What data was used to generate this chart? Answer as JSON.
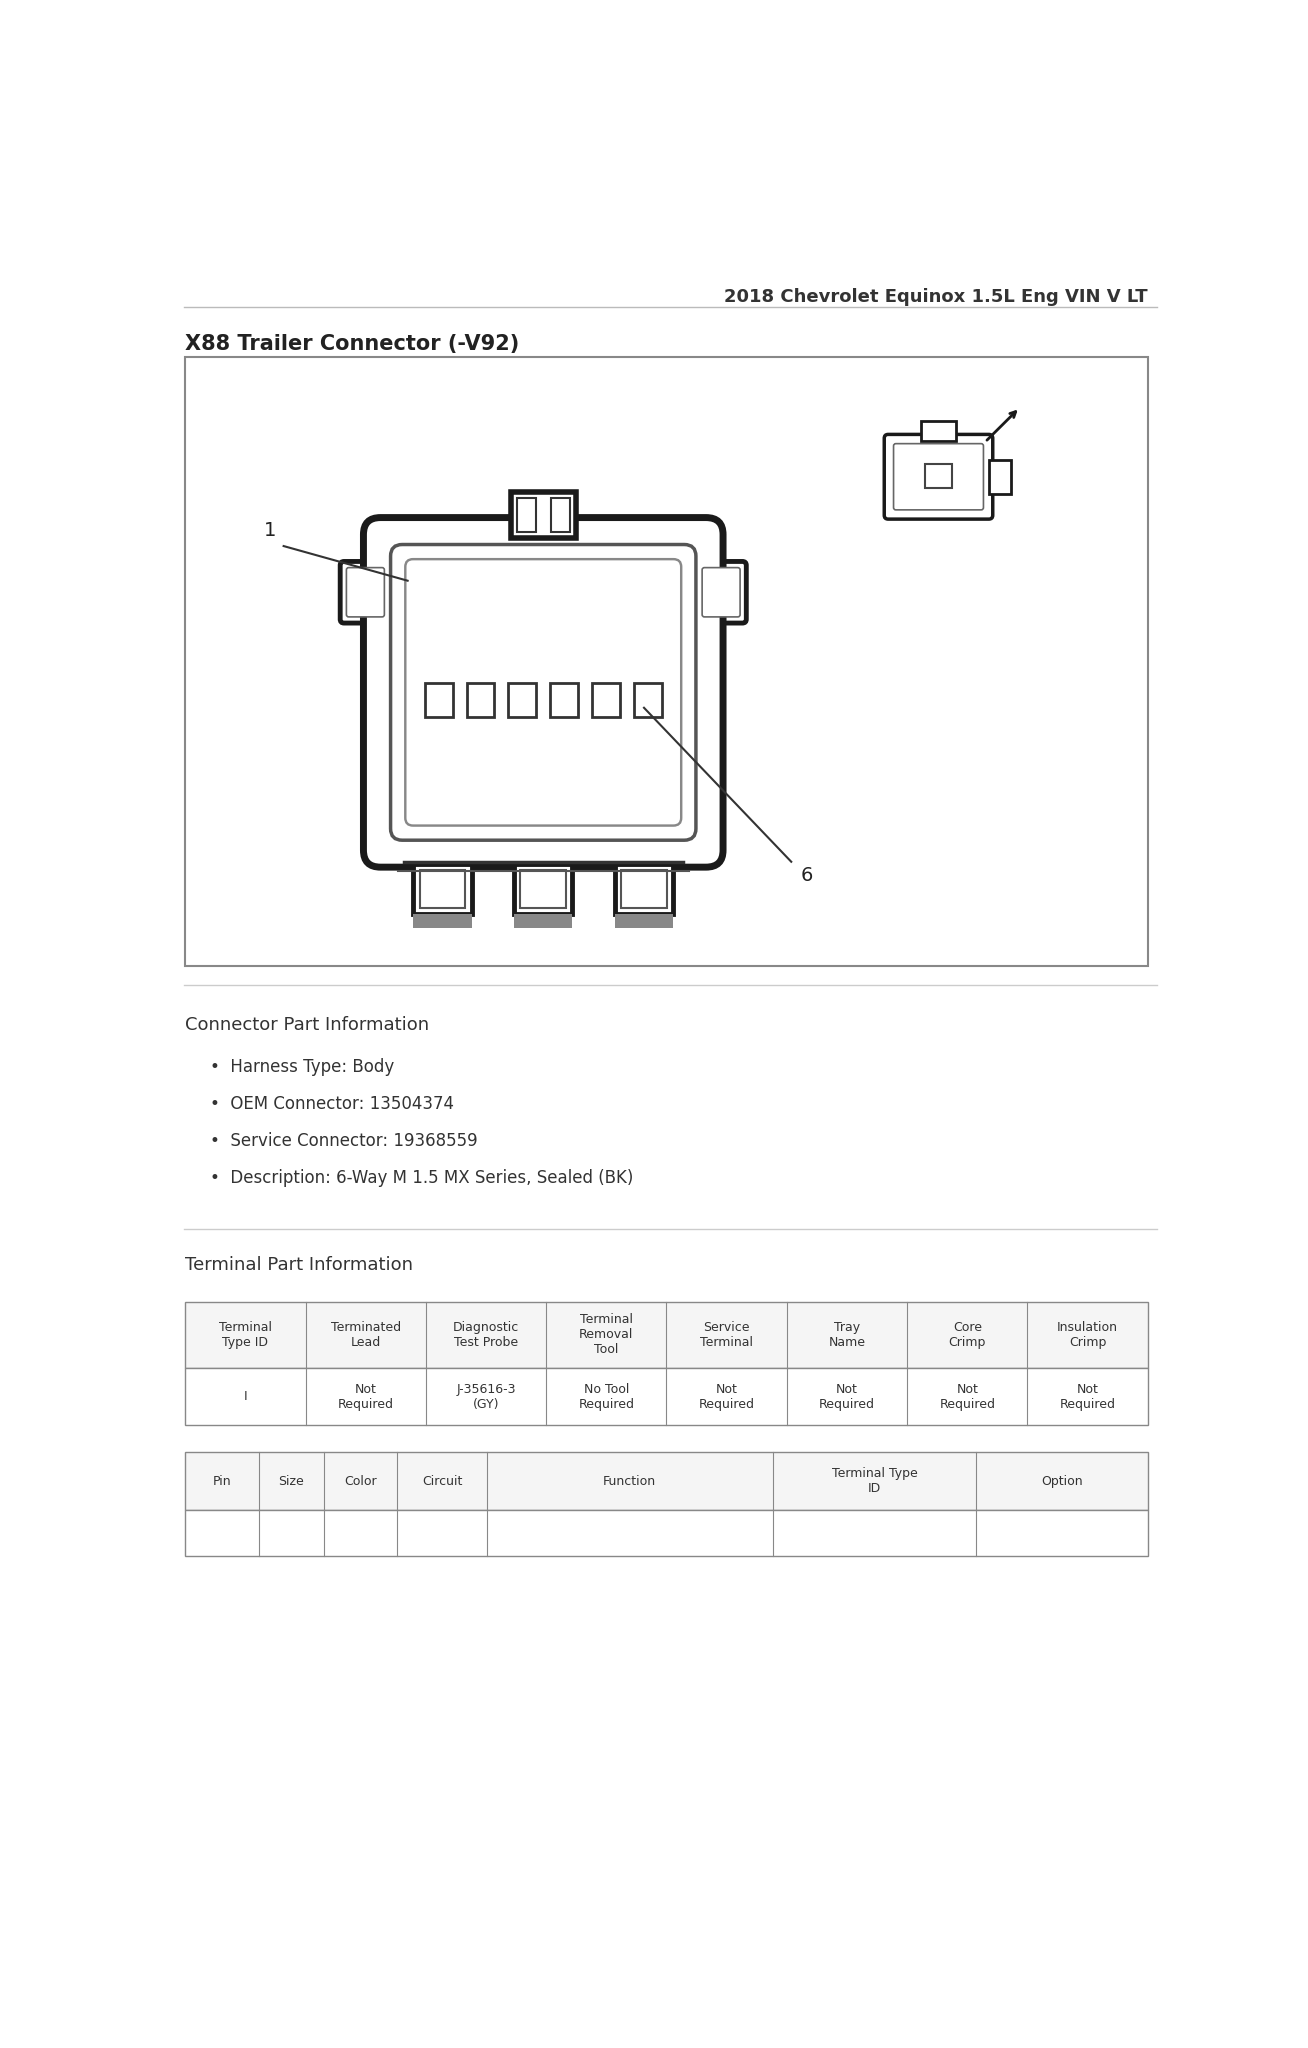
{
  "page_title": "2018 Chevrolet Equinox 1.5L Eng VIN V LT",
  "connector_title": "X88 Trailer Connector (-V92)",
  "bg_color": "#ffffff",
  "text_color": "#333333",
  "connector_info_title": "Connector Part Information",
  "connector_bullets": [
    "Harness Type: Body",
    "OEM Connector: 13504374",
    "Service Connector: 19368559",
    "Description: 6-Way M 1.5 MX Series, Sealed (BK)"
  ],
  "terminal_info_title": "Terminal Part Information",
  "table1_headers": [
    "Terminal\nType ID",
    "Terminated\nLead",
    "Diagnostic\nTest Probe",
    "Terminal\nRemoval\nTool",
    "Service\nTerminal",
    "Tray\nName",
    "Core\nCrimp",
    "Insulation\nCrimp"
  ],
  "table1_row": [
    "I",
    "Not\nRequired",
    "J-35616-3\n(GY)",
    "No Tool\nRequired",
    "Not\nRequired",
    "Not\nRequired",
    "Not\nRequired",
    "Not\nRequired"
  ],
  "table2_headers": [
    "Pin",
    "Size",
    "Color",
    "Circuit",
    "Function",
    "Terminal Type\nID",
    "Option"
  ],
  "divider_color": "#aaaaaa",
  "table_line_color": "#888888",
  "header_bg": "#f5f5f5"
}
